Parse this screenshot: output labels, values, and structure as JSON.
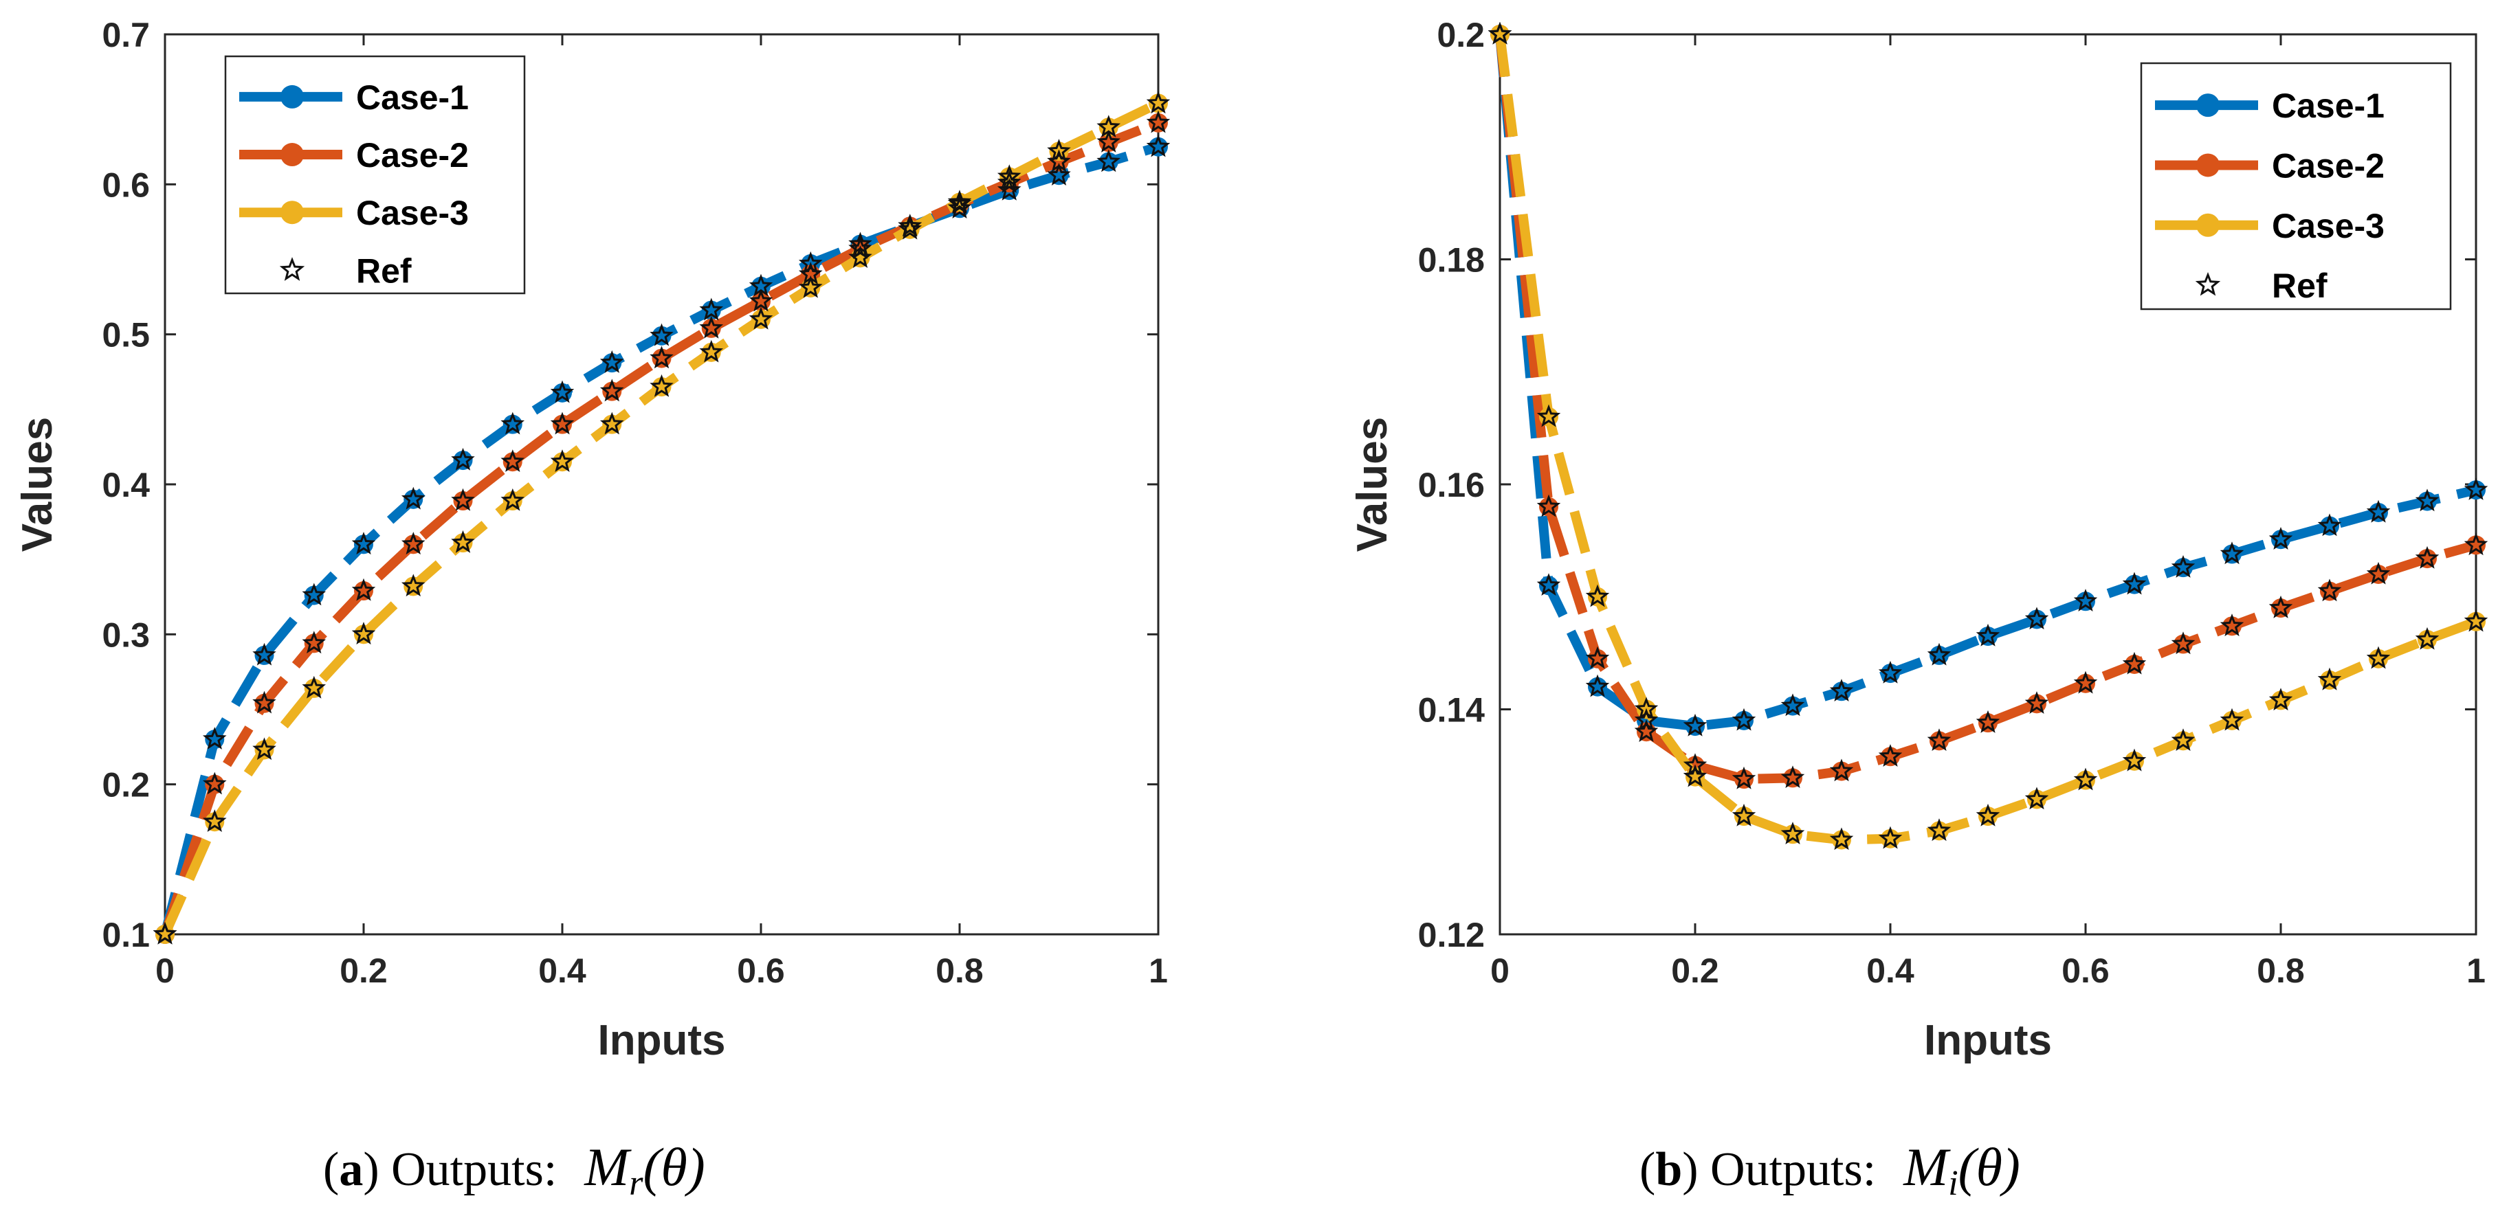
{
  "chart_data": [
    {
      "type": "line",
      "xlabel": "Inputs",
      "ylabel": "Values",
      "xlim": [
        0,
        1
      ],
      "ylim": [
        0.1,
        0.7
      ],
      "xticks": [
        "0",
        "0.2",
        "0.4",
        "0.6",
        "0.8",
        "1"
      ],
      "yticks": [
        "0.1",
        "0.2",
        "0.3",
        "0.4",
        "0.5",
        "0.6",
        "0.7"
      ],
      "legend_position": "top-left",
      "caption": {
        "label": "a",
        "text": ") Outputs:",
        "math_main": "M",
        "math_sub": "r",
        "math_arg": "(θ)"
      },
      "x": [
        0,
        0.05,
        0.1,
        0.15,
        0.2,
        0.25,
        0.3,
        0.35,
        0.4,
        0.45,
        0.5,
        0.55,
        0.6,
        0.65,
        0.7,
        0.75,
        0.8,
        0.85,
        0.9,
        0.95,
        1
      ],
      "series": [
        {
          "name": "Case-1",
          "color": "#0072BD",
          "values": [
            0.1,
            0.23,
            0.286,
            0.326,
            0.36,
            0.39,
            0.416,
            0.44,
            0.461,
            0.481,
            0.499,
            0.516,
            0.532,
            0.547,
            0.56,
            0.572,
            0.584,
            0.596,
            0.606,
            0.615,
            0.625
          ]
        },
        {
          "name": "Case-2",
          "color": "#D95319",
          "values": [
            0.1,
            0.2,
            0.254,
            0.294,
            0.329,
            0.36,
            0.389,
            0.415,
            0.44,
            0.462,
            0.484,
            0.504,
            0.522,
            0.54,
            0.557,
            0.572,
            0.587,
            0.601,
            0.615,
            0.628,
            0.641
          ]
        },
        {
          "name": "Case-3",
          "color": "#EDB120",
          "values": [
            0.1,
            0.175,
            0.223,
            0.264,
            0.3,
            0.332,
            0.361,
            0.389,
            0.415,
            0.44,
            0.465,
            0.488,
            0.51,
            0.531,
            0.551,
            0.57,
            0.588,
            0.605,
            0.622,
            0.638,
            0.654
          ]
        }
      ],
      "ref_label": "Ref"
    },
    {
      "type": "line",
      "xlabel": "Inputs",
      "ylabel": "Values",
      "xlim": [
        0,
        1
      ],
      "ylim": [
        0.12,
        0.2
      ],
      "xticks": [
        "0",
        "0.2",
        "0.4",
        "0.6",
        "0.8",
        "1"
      ],
      "yticks": [
        "0.12",
        "0.14",
        "0.16",
        "0.18",
        "0.2"
      ],
      "legend_position": "top-right",
      "caption": {
        "label": "b",
        "text": ") Outputs:",
        "math_main": "M",
        "math_sub": "i",
        "math_arg": "(θ)"
      },
      "x": [
        0,
        0.05,
        0.1,
        0.15,
        0.2,
        0.25,
        0.3,
        0.35,
        0.4,
        0.45,
        0.5,
        0.55,
        0.6,
        0.65,
        0.7,
        0.75,
        0.8,
        0.85,
        0.9,
        0.95,
        1
      ],
      "series": [
        {
          "name": "Case-1",
          "color": "#0072BD",
          "values": [
            0.2,
            0.151,
            0.142,
            0.139,
            0.1385,
            0.139,
            0.1403,
            0.1416,
            0.1432,
            0.1448,
            0.1465,
            0.148,
            0.1496,
            0.1511,
            0.1526,
            0.1538,
            0.1551,
            0.1563,
            0.1575,
            0.1585,
            0.1595
          ]
        },
        {
          "name": "Case-2",
          "color": "#D95319",
          "values": [
            0.2,
            0.158,
            0.1445,
            0.138,
            0.135,
            0.1338,
            0.1339,
            0.1345,
            0.1358,
            0.1372,
            0.1388,
            0.1405,
            0.1423,
            0.144,
            0.1458,
            0.1474,
            0.149,
            0.1505,
            0.152,
            0.1534,
            0.1546
          ]
        },
        {
          "name": "Case-3",
          "color": "#EDB120",
          "values": [
            0.2,
            0.166,
            0.15,
            0.14,
            0.134,
            0.1305,
            0.1289,
            0.1284,
            0.1285,
            0.1292,
            0.1305,
            0.132,
            0.1337,
            0.1354,
            0.1372,
            0.139,
            0.1408,
            0.1426,
            0.1445,
            0.1462,
            0.1478
          ]
        }
      ],
      "ref_label": "Ref"
    }
  ]
}
